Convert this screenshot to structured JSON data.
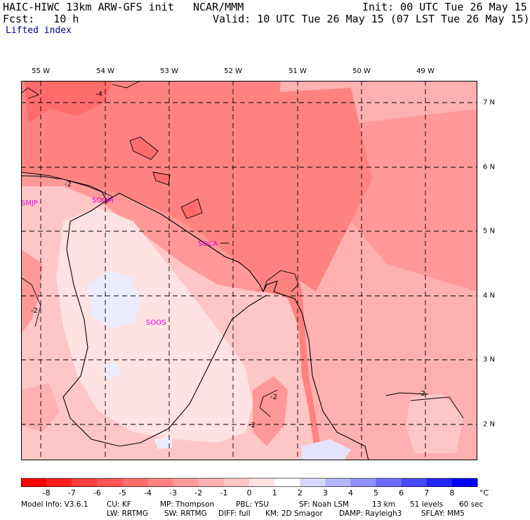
{
  "header": {
    "model": "HAIC-HIWC 13km ARW-GFS init",
    "org": "NCAR/MMM",
    "init": "Init: 00 UTC Tue 26 May 15",
    "fcst": "Fcst:   10 h",
    "valid": "Valid: 10 UTC Tue 26 May 15 (07 LST Tue 26 May 15)",
    "field": "Lifted index"
  },
  "map": {
    "lon_labels": [
      "55 W",
      "54 W",
      "53 W",
      "52 W",
      "51 W",
      "50 W",
      "49 W"
    ],
    "lat_labels": [
      "7 N",
      "6 N",
      "5 N",
      "4 N",
      "3 N",
      "2 N"
    ],
    "stations": [
      "SMJP",
      "SOGM",
      "SOCA",
      "SOOS"
    ],
    "contour_labels": [
      "-4",
      "-2",
      "-2",
      "-2",
      "-2",
      "-2",
      "-2"
    ],
    "colors": {
      "station": "#e000e0"
    }
  },
  "colorbar": {
    "labels": [
      "-8",
      "-7",
      "-6",
      "-5",
      "-4",
      "-3",
      "-2",
      "-1",
      "0",
      "1",
      "2",
      "3",
      "4",
      "5",
      "6",
      "7",
      "8"
    ],
    "unit": "°C",
    "colors": [
      "#ff1e1e",
      "#ff3c3c",
      "#ff5555",
      "#ff6c6c",
      "#ff8282",
      "#ff9898",
      "#ffb0b0",
      "#ffc6c6",
      "#ffe2e2",
      "#ffffff",
      "#d8d8ff",
      "#b4b4ff",
      "#9090ff",
      "#6c6cff",
      "#4848ff",
      "#2424ff",
      "#0000ff"
    ]
  },
  "footer": {
    "line1": [
      "Model Info: V3.6.1",
      "CU: KF",
      "MP: Thompson",
      "PBL: YSU",
      "SF: Noah LSM",
      "13 km",
      "51 levels",
      "60 sec"
    ],
    "line2": [
      "LW: RRTMG",
      "SW: RRTMG",
      "DIFF: full",
      "KM: 2D Smagor",
      "DAMP: Rayleigh3",
      "SFLAY: MM5"
    ]
  }
}
